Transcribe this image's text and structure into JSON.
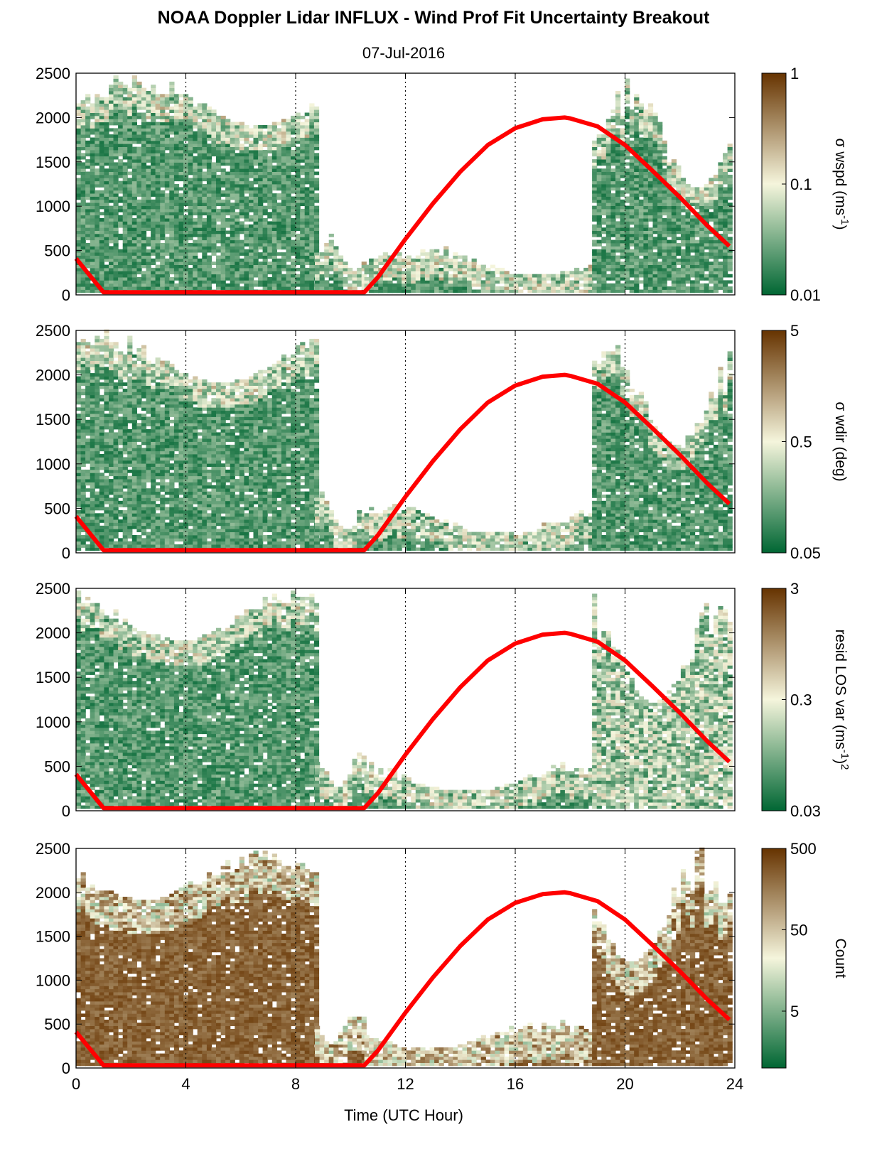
{
  "title": "NOAA Doppler Lidar INFLUX - Wind Prof Fit Uncertainty Breakout",
  "subtitle": "07-Jul-2016",
  "xlabel": "Time (UTC Hour)",
  "colors": {
    "low": "#006633",
    "mid": "#f5f5dc",
    "high": "#663300",
    "sun_curve": "#ff0000"
  },
  "chart_data": [
    {
      "type": "heatmap",
      "name": "sigma-wspd",
      "xlim": [
        0,
        24
      ],
      "ylim": [
        0,
        2500
      ],
      "xticks": [
        0,
        4,
        8,
        12,
        16,
        20,
        24
      ],
      "yticks": [
        0,
        500,
        1000,
        1500,
        2000,
        2500
      ],
      "yticklabels": [
        "0",
        "500",
        "1000",
        "1500",
        "2000",
        "2500"
      ],
      "grid": "dotted vertical at 4-hour intervals",
      "colorbar": {
        "label": "σ wspd (ms",
        "label_sup": "-1",
        "label_end": ")",
        "scale": "log",
        "range": [
          0.01,
          1
        ],
        "ticks": [
          0.01,
          0.1,
          1
        ],
        "ticklabels": [
          "0.01",
          "0.1",
          "1"
        ]
      },
      "regions": [
        {
          "x": [
            0,
            8.7
          ],
          "top": [
            1900,
            2500
          ],
          "level": "low"
        },
        {
          "x": [
            8.7,
            10.5
          ],
          "top": [
            250,
            700
          ],
          "level": "low"
        },
        {
          "x": [
            10.5,
            18.8
          ],
          "top": [
            200,
            550
          ],
          "level": "low"
        },
        {
          "x": [
            18.8,
            23.8
          ],
          "top": [
            1200,
            2500
          ],
          "level": "low"
        }
      ],
      "sun_curve": {
        "x": [
          0,
          1,
          2,
          4,
          6,
          8,
          10,
          10.5,
          11,
          12,
          13,
          14,
          15,
          16,
          17,
          17.8,
          18,
          19,
          20,
          21,
          22,
          23,
          23.8
        ],
        "y": [
          410,
          30,
          30,
          30,
          30,
          30,
          30,
          30,
          200,
          630,
          1030,
          1390,
          1690,
          1880,
          1980,
          2000,
          1990,
          1900,
          1690,
          1400,
          1100,
          780,
          550
        ]
      }
    },
    {
      "type": "heatmap",
      "name": "sigma-wdir",
      "xlim": [
        0,
        24
      ],
      "ylim": [
        0,
        2500
      ],
      "xticks": [
        0,
        4,
        8,
        12,
        16,
        20,
        24
      ],
      "yticks": [
        0,
        500,
        1000,
        1500,
        2000,
        2500
      ],
      "yticklabels": [
        "0",
        "500",
        "1000",
        "1500",
        "2000",
        "2500"
      ],
      "grid": "dotted vertical at 4-hour intervals",
      "colorbar": {
        "label": "σ wdir (deg)",
        "scale": "log",
        "range": [
          0.05,
          5
        ],
        "ticks": [
          0.05,
          0.5,
          5
        ],
        "ticklabels": [
          "0.05",
          "0.5",
          "5"
        ]
      },
      "regions": [
        {
          "x": [
            0,
            8.7
          ],
          "top": [
            1900,
            2500
          ],
          "level": "low"
        },
        {
          "x": [
            8.7,
            10.5
          ],
          "top": [
            250,
            700
          ],
          "level": "low"
        },
        {
          "x": [
            10.5,
            18.8
          ],
          "top": [
            200,
            550
          ],
          "level": "low"
        },
        {
          "x": [
            18.8,
            23.8
          ],
          "top": [
            1200,
            2500
          ],
          "level": "low"
        }
      ],
      "sun_curve": {
        "x": [
          0,
          1,
          2,
          4,
          6,
          8,
          10,
          10.5,
          11,
          12,
          13,
          14,
          15,
          16,
          17,
          17.8,
          18,
          19,
          20,
          21,
          22,
          23,
          23.8
        ],
        "y": [
          410,
          30,
          30,
          30,
          30,
          30,
          30,
          30,
          200,
          630,
          1030,
          1390,
          1690,
          1880,
          1980,
          2000,
          1990,
          1900,
          1690,
          1400,
          1100,
          780,
          550
        ]
      }
    },
    {
      "type": "heatmap",
      "name": "resid-los-var",
      "xlim": [
        0,
        24
      ],
      "ylim": [
        0,
        2500
      ],
      "xticks": [
        0,
        4,
        8,
        12,
        16,
        20,
        24
      ],
      "yticks": [
        0,
        500,
        1000,
        1500,
        2000,
        2500
      ],
      "yticklabels": [
        "0",
        "500",
        "1000",
        "1500",
        "2000",
        "2500"
      ],
      "grid": "dotted vertical at 4-hour intervals",
      "colorbar": {
        "label": "resid LOS var (ms",
        "label_sup": "-1",
        "label_end": ")",
        "label_sup2": "2",
        "scale": "log",
        "range": [
          0.03,
          3
        ],
        "ticks": [
          0.03,
          0.3,
          3
        ],
        "ticklabels": [
          "0.03",
          "0.3",
          "3"
        ]
      },
      "regions": [
        {
          "x": [
            0,
            8.7
          ],
          "top": [
            1900,
            2500
          ],
          "level": "low"
        },
        {
          "x": [
            8.7,
            10.5
          ],
          "top": [
            250,
            700
          ],
          "level": "low"
        },
        {
          "x": [
            10.5,
            18.8
          ],
          "top": [
            200,
            550
          ],
          "level": "low"
        },
        {
          "x": [
            18.8,
            23.8
          ],
          "top": [
            1200,
            2500
          ],
          "level": "mixed"
        }
      ],
      "sun_curve": {
        "x": [
          0,
          1,
          2,
          4,
          6,
          8,
          10,
          10.5,
          11,
          12,
          13,
          14,
          15,
          16,
          17,
          17.8,
          18,
          19,
          20,
          21,
          22,
          23,
          23.8
        ],
        "y": [
          410,
          30,
          30,
          30,
          30,
          30,
          30,
          30,
          200,
          630,
          1030,
          1390,
          1690,
          1880,
          1980,
          2000,
          1990,
          1900,
          1690,
          1400,
          1100,
          780,
          550
        ]
      }
    },
    {
      "type": "heatmap",
      "name": "count",
      "xlim": [
        0,
        24
      ],
      "ylim": [
        0,
        2500
      ],
      "xticks": [
        0,
        4,
        8,
        12,
        16,
        20,
        24
      ],
      "xticklabels": [
        "0",
        "4",
        "8",
        "12",
        "16",
        "20",
        "24"
      ],
      "yticks": [
        0,
        500,
        1000,
        1500,
        2000,
        2500
      ],
      "yticklabels": [
        "0",
        "500",
        "1000",
        "1500",
        "2000",
        "2500"
      ],
      "grid": "dotted vertical at 4-hour intervals",
      "colorbar": {
        "label": "Count",
        "scale": "log",
        "range": [
          1,
          500
        ],
        "ticks": [
          5,
          50,
          500
        ],
        "ticklabels": [
          "5",
          "50",
          "500"
        ]
      },
      "regions": [
        {
          "x": [
            0,
            8.7
          ],
          "top": [
            1900,
            2500
          ],
          "level": "high"
        },
        {
          "x": [
            8.7,
            10.5
          ],
          "top": [
            250,
            700
          ],
          "level": "high"
        },
        {
          "x": [
            10.5,
            18.8
          ],
          "top": [
            200,
            550
          ],
          "level": "high"
        },
        {
          "x": [
            18.8,
            23.8
          ],
          "top": [
            1200,
            2500
          ],
          "level": "high"
        }
      ],
      "sun_curve": {
        "x": [
          0,
          1,
          2,
          4,
          6,
          8,
          10,
          10.5,
          11,
          12,
          13,
          14,
          15,
          16,
          17,
          17.8,
          18,
          19,
          20,
          21,
          22,
          23,
          23.8
        ],
        "y": [
          410,
          30,
          30,
          30,
          30,
          30,
          30,
          30,
          200,
          630,
          1030,
          1390,
          1690,
          1880,
          1980,
          2000,
          1990,
          1900,
          1690,
          1400,
          1100,
          780,
          550
        ]
      }
    }
  ]
}
